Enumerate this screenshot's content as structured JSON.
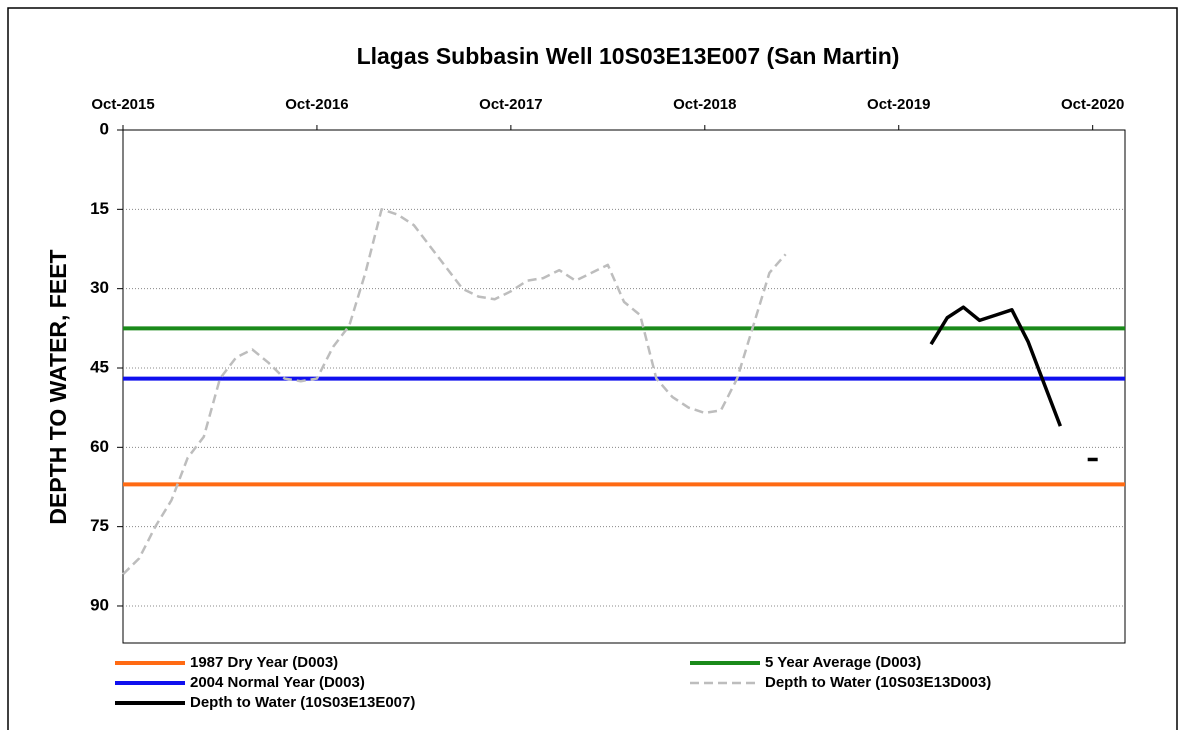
{
  "chart_data": {
    "type": "line",
    "title": "Llagas Subbasin Well  10S03E13E007   (San Martin)",
    "y_label": "DEPTH TO WATER, FEET",
    "y_inverted": true,
    "grid": true,
    "ylim": [
      0,
      97
    ],
    "yticks": [
      0,
      15,
      30,
      45,
      60,
      75,
      90
    ],
    "xlim": [
      "2015-10",
      "2020-12"
    ],
    "xticks": [
      {
        "value": "2015-10",
        "label": "Oct-2015"
      },
      {
        "value": "2016-10",
        "label": "Oct-2016"
      },
      {
        "value": "2017-10",
        "label": "Oct-2017"
      },
      {
        "value": "2018-10",
        "label": "Oct-2018"
      },
      {
        "value": "2019-10",
        "label": "Oct-2019"
      },
      {
        "value": "2020-10",
        "label": "Oct-2020"
      }
    ],
    "x": [
      "2015-10",
      "2015-11",
      "2015-12",
      "2016-01",
      "2016-02",
      "2016-03",
      "2016-04",
      "2016-05",
      "2016-06",
      "2016-07",
      "2016-08",
      "2016-09",
      "2016-10",
      "2016-11",
      "2016-12",
      "2017-01",
      "2017-02",
      "2017-03",
      "2017-04",
      "2017-05",
      "2017-06",
      "2017-07",
      "2017-08",
      "2017-09",
      "2017-10",
      "2017-11",
      "2017-12",
      "2018-01",
      "2018-02",
      "2018-03",
      "2018-04",
      "2018-05",
      "2018-06",
      "2018-07",
      "2018-08",
      "2018-09",
      "2018-10",
      "2018-11",
      "2018-12",
      "2019-01",
      "2019-02",
      "2019-03",
      "2019-04",
      "2019-05",
      "2019-06",
      "2019-07",
      "2019-08",
      "2019-09",
      "2019-10",
      "2019-11",
      "2019-12",
      "2020-01",
      "2020-02",
      "2020-03",
      "2020-04",
      "2020-05",
      "2020-06",
      "2020-07",
      "2020-08",
      "2020-09",
      "2020-10"
    ],
    "series": [
      {
        "name": "1987 Dry Year (D003)",
        "color": "#ff6a13",
        "value": 67
      },
      {
        "name": "5 Year Average (D003)",
        "color": "#1a8a1a",
        "value": 37.5
      },
      {
        "name": "2004 Normal Year (D003)",
        "color": "#1010ee",
        "value": 47
      },
      {
        "name": "Depth to Water (10S03E13D003)",
        "color": "#bdbdbd",
        "dashed": true,
        "values": [
          84,
          81,
          75,
          70,
          62,
          58,
          47,
          43,
          41.5,
          44,
          47,
          47.5,
          47,
          41,
          37,
          27,
          15,
          16,
          18,
          22,
          26,
          30,
          31.5,
          32,
          30.5,
          28.5,
          28,
          26.5,
          28.5,
          27,
          25.5,
          32.5,
          35,
          47,
          50.5,
          52.5,
          53.5,
          53,
          47,
          37,
          27,
          23.5,
          null,
          null,
          null,
          null,
          null,
          null,
          null,
          null,
          null,
          null,
          null,
          null,
          null,
          null,
          null,
          null,
          null,
          null,
          null
        ]
      },
      {
        "name": "Depth to Water (10S03E13E007)",
        "color": "#000000",
        "values": [
          null,
          null,
          null,
          null,
          null,
          null,
          null,
          null,
          null,
          null,
          null,
          null,
          null,
          null,
          null,
          null,
          null,
          null,
          null,
          null,
          null,
          null,
          null,
          null,
          null,
          null,
          null,
          null,
          null,
          null,
          null,
          null,
          null,
          null,
          null,
          null,
          null,
          null,
          null,
          null,
          null,
          null,
          null,
          null,
          null,
          null,
          null,
          null,
          null,
          null,
          40.5,
          35.5,
          33.5,
          36,
          35,
          34,
          40,
          48,
          56,
          null,
          62.3
        ]
      }
    ]
  }
}
